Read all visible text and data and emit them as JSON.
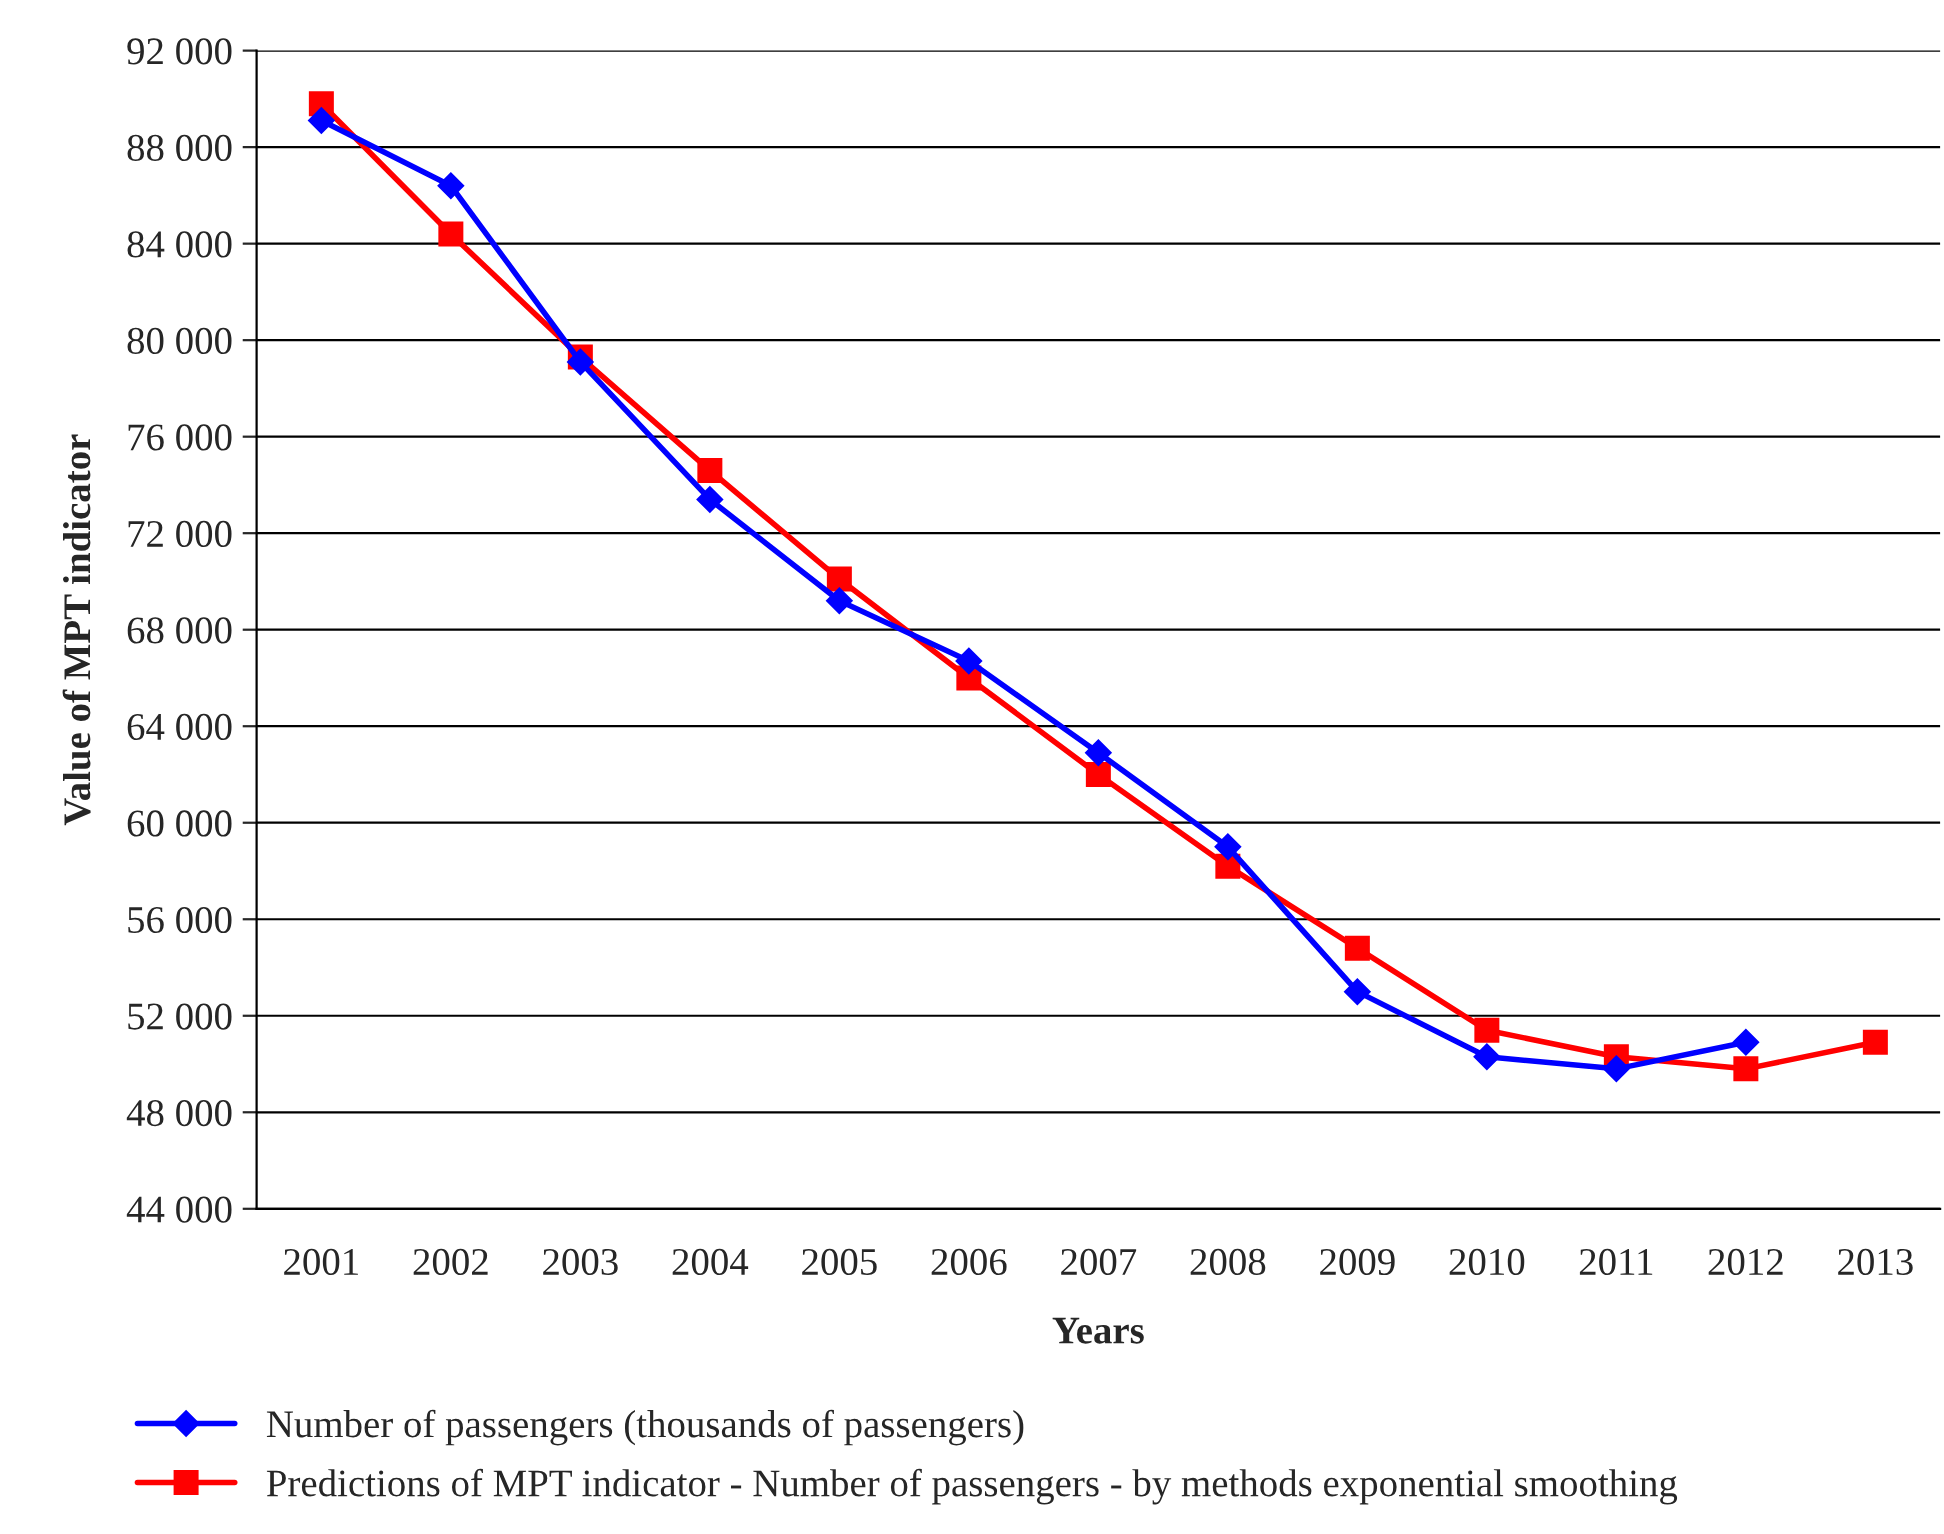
{
  "chart_data": {
    "type": "line",
    "xlabel": "Years",
    "ylabel": "Value of MPT indicator",
    "categories": [
      "2001",
      "2002",
      "2003",
      "2004",
      "2005",
      "2006",
      "2007",
      "2008",
      "2009",
      "2010",
      "2011",
      "2012",
      "2013"
    ],
    "series": [
      {
        "name": "Number of passengers (thousands of passengers)",
        "color": "#0000ff",
        "marker": "diamond",
        "values": [
          89100,
          86400,
          79100,
          73400,
          69200,
          66700,
          62900,
          59000,
          53000,
          50300,
          49800,
          50900,
          null
        ]
      },
      {
        "name": "Predictions of MPT indicator - Number of passengers - by methods exponential smoothing",
        "color": "#ff0000",
        "marker": "square",
        "values": [
          89800,
          84400,
          79300,
          74600,
          70100,
          66000,
          62000,
          58200,
          54800,
          51400,
          50300,
          49800,
          50900
        ]
      }
    ],
    "ylim": [
      44000,
      92000
    ],
    "yticks": [
      {
        "value": 44000,
        "label": "44 000"
      },
      {
        "value": 48000,
        "label": "48 000"
      },
      {
        "value": 52000,
        "label": "52 000"
      },
      {
        "value": 56000,
        "label": "56 000"
      },
      {
        "value": 60000,
        "label": "60 000"
      },
      {
        "value": 64000,
        "label": "64 000"
      },
      {
        "value": 68000,
        "label": "68 000"
      },
      {
        "value": 72000,
        "label": "72 000"
      },
      {
        "value": 76000,
        "label": "76 000"
      },
      {
        "value": 80000,
        "label": "80 000"
      },
      {
        "value": 84000,
        "label": "84 000"
      },
      {
        "value": 88000,
        "label": "88 000"
      },
      {
        "value": 92000,
        "label": "92 000"
      }
    ],
    "grid": "y",
    "legend": "bottom",
    "line_style": "solid"
  }
}
